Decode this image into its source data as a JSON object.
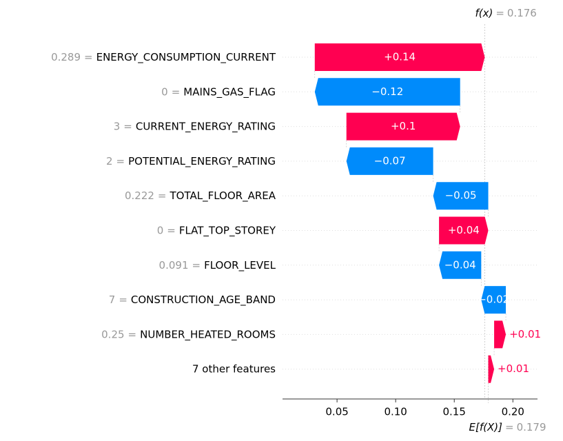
{
  "chart_data": {
    "type": "waterfall",
    "categories": [
      "ENERGY_CONSUMPTION_CURRENT",
      "MAINS_GAS_FLAG",
      "CURRENT_ENERGY_RATING",
      "POTENTIAL_ENERGY_RATING",
      "TOTAL_FLOOR_AREA",
      "FLAT_TOP_STOREY",
      "FLOOR_LEVEL",
      "CONSTRUCTION_AGE_BAND",
      "NUMBER_HEATED_ROOMS",
      "7 other features"
    ],
    "feature_values": [
      0.289,
      0,
      3,
      2,
      0.222,
      0,
      0.091,
      7,
      0.25,
      null
    ],
    "equals": "=",
    "values": [
      0.145,
      -0.124,
      0.097,
      -0.074,
      -0.047,
      0.042,
      -0.036,
      -0.021,
      0.01,
      0.005
    ],
    "value_labels": [
      "+0.14",
      "−0.12",
      "+0.1",
      "−0.07",
      "−0.05",
      "+0.04",
      "−0.04",
      "−0.02",
      "+0.01",
      "+0.01"
    ],
    "positive_color": "#ff0051",
    "negative_color": "#008bfb",
    "fx_label": "f(x)",
    "fx": 0.176,
    "base_label": "E[f(X)]",
    "base_value": 0.179,
    "xlim": [
      0.0035,
      0.221
    ],
    "xticks": [
      0.05,
      {
        "value": 0.1,
        "label": "0.10"
      },
      0.15,
      {
        "value": 0.2,
        "label": "0.20"
      }
    ],
    "grid": true
  }
}
